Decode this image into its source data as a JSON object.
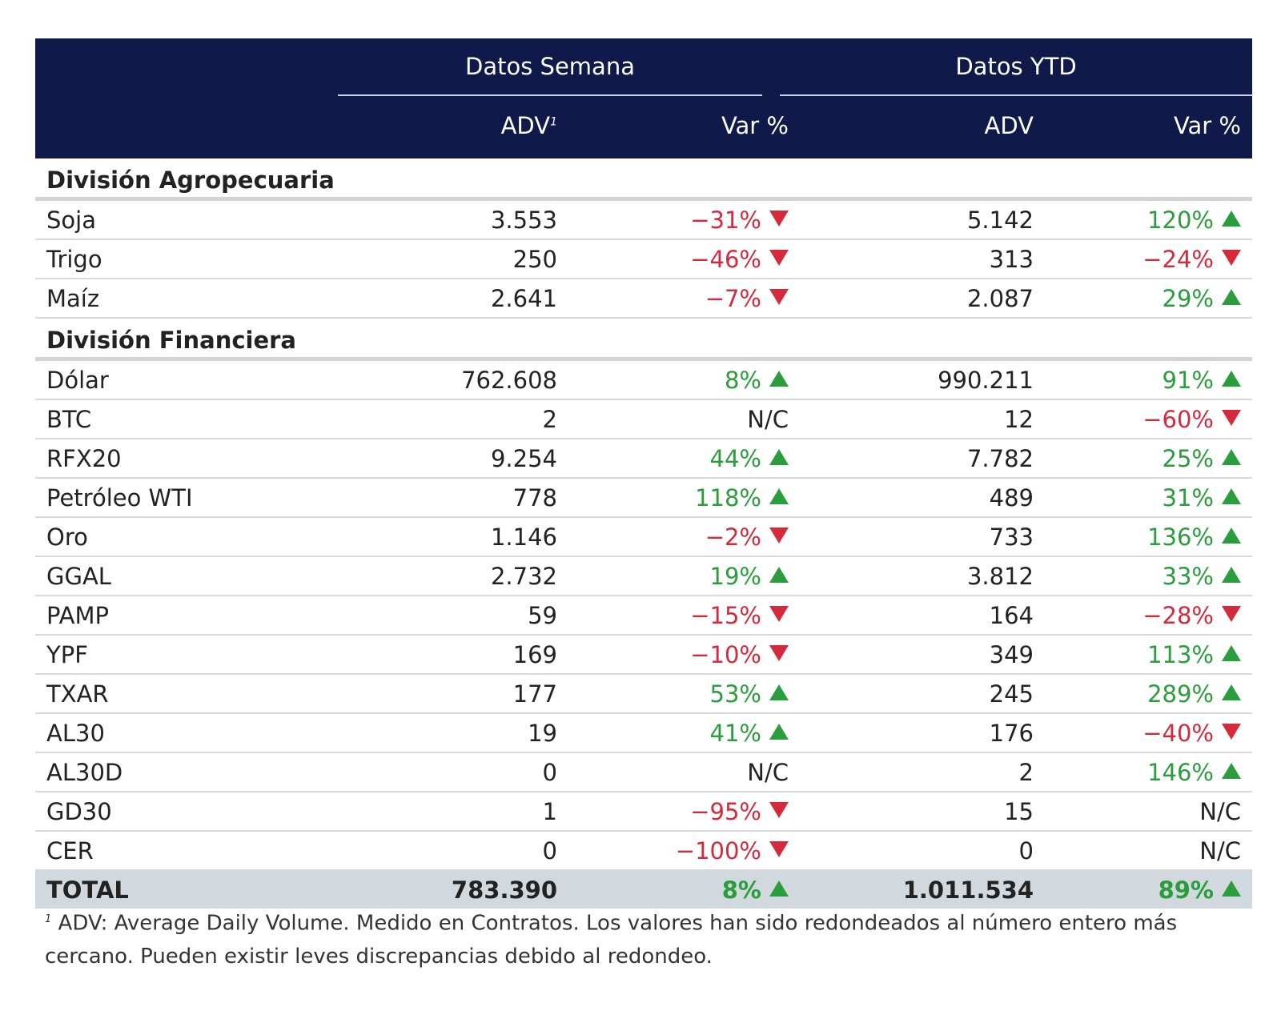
{
  "header": {
    "group_week": "Datos Semana",
    "group_ytd": "Datos YTD",
    "adv_label": "ADV",
    "adv_footnote_mark": "1",
    "var_label": "Var %",
    "adv_ytd_label": "ADV",
    "var_ytd_label": "Var %"
  },
  "sections": [
    {
      "title": "División Agropecuaria",
      "rows": [
        {
          "name": "Soja",
          "adv_w": "3.553",
          "var_w": "−31%",
          "dir_w": "down",
          "adv_y": "5.142",
          "var_y": "120%",
          "dir_y": "up"
        },
        {
          "name": "Trigo",
          "adv_w": "250",
          "var_w": "−46%",
          "dir_w": "down",
          "adv_y": "313",
          "var_y": "−24%",
          "dir_y": "down"
        },
        {
          "name": "Maíz",
          "adv_w": "2.641",
          "var_w": "−7%",
          "dir_w": "down",
          "adv_y": "2.087",
          "var_y": "29%",
          "dir_y": "up"
        }
      ]
    },
    {
      "title": "División Financiera",
      "rows": [
        {
          "name": "Dólar",
          "adv_w": "762.608",
          "var_w": "8%",
          "dir_w": "up",
          "adv_y": "990.211",
          "var_y": "91%",
          "dir_y": "up"
        },
        {
          "name": "BTC",
          "adv_w": "2",
          "var_w": "N/C",
          "dir_w": "none",
          "adv_y": "12",
          "var_y": "−60%",
          "dir_y": "down"
        },
        {
          "name": "RFX20",
          "adv_w": "9.254",
          "var_w": "44%",
          "dir_w": "up",
          "adv_y": "7.782",
          "var_y": "25%",
          "dir_y": "up"
        },
        {
          "name": "Petróleo WTI",
          "adv_w": "778",
          "var_w": "118%",
          "dir_w": "up",
          "adv_y": "489",
          "var_y": "31%",
          "dir_y": "up"
        },
        {
          "name": "Oro",
          "adv_w": "1.146",
          "var_w": "−2%",
          "dir_w": "down",
          "adv_y": "733",
          "var_y": "136%",
          "dir_y": "up"
        },
        {
          "name": "GGAL",
          "adv_w": "2.732",
          "var_w": "19%",
          "dir_w": "up",
          "adv_y": "3.812",
          "var_y": "33%",
          "dir_y": "up"
        },
        {
          "name": "PAMP",
          "adv_w": "59",
          "var_w": "−15%",
          "dir_w": "down",
          "adv_y": "164",
          "var_y": "−28%",
          "dir_y": "down"
        },
        {
          "name": "YPF",
          "adv_w": "169",
          "var_w": "−10%",
          "dir_w": "down",
          "adv_y": "349",
          "var_y": "113%",
          "dir_y": "up"
        },
        {
          "name": "TXAR",
          "adv_w": "177",
          "var_w": "53%",
          "dir_w": "up",
          "adv_y": "245",
          "var_y": "289%",
          "dir_y": "up"
        },
        {
          "name": "AL30",
          "adv_w": "19",
          "var_w": "41%",
          "dir_w": "up",
          "adv_y": "176",
          "var_y": "−40%",
          "dir_y": "down"
        },
        {
          "name": "AL30D",
          "adv_w": "0",
          "var_w": "N/C",
          "dir_w": "none",
          "adv_y": "2",
          "var_y": "146%",
          "dir_y": "up"
        },
        {
          "name": "GD30",
          "adv_w": "1",
          "var_w": "−95%",
          "dir_w": "down",
          "adv_y": "15",
          "var_y": "N/C",
          "dir_y": "none"
        },
        {
          "name": "CER",
          "adv_w": "0",
          "var_w": "−100%",
          "dir_w": "down",
          "adv_y": "0",
          "var_y": "N/C",
          "dir_y": "none"
        }
      ]
    }
  ],
  "total": {
    "name": "TOTAL",
    "adv_w": "783.390",
    "var_w": "8%",
    "dir_w": "up",
    "adv_y": "1.011.534",
    "var_y": "89%",
    "dir_y": "up"
  },
  "footnote": {
    "mark": "1",
    "text": "ADV: Average Daily Volume. Medido en Contratos. Los valores han sido redondeados al número entero más cercano. Pueden existir leves discrepancias debido al redondeo."
  },
  "colors": {
    "header_bg": "#0f1a4a",
    "up": "#2a9d3c",
    "down": "#d42a3c",
    "total_bg": "#d1d9de"
  }
}
